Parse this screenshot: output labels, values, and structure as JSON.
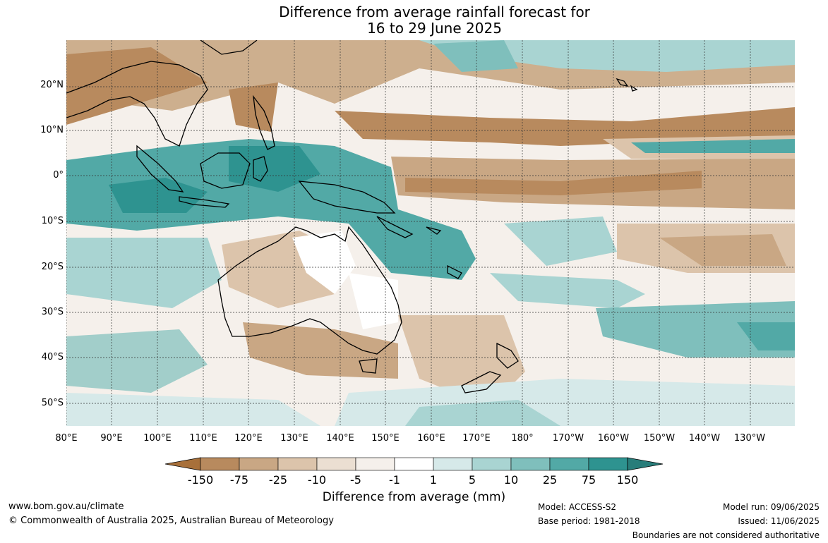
{
  "title": {
    "line1": "Difference from average rainfall forecast for",
    "line2": "16 to 29 June 2025"
  },
  "axes": {
    "lat_labels": [
      "20°N",
      "10°N",
      "0°",
      "10°S",
      "20°S",
      "30°S",
      "40°S",
      "50°S"
    ],
    "lon_labels": [
      "80°E",
      "90°E",
      "100°E",
      "110°E",
      "120°E",
      "130°E",
      "140°E",
      "150°E",
      "160°E",
      "170°E",
      "180°",
      "170°W",
      "160°W",
      "150°W",
      "140°W",
      "130°W"
    ]
  },
  "colorbar": {
    "labels": [
      "-150",
      "-75",
      "-25",
      "-10",
      "-5",
      "-1",
      "1",
      "5",
      "10",
      "25",
      "75",
      "150"
    ],
    "colors": [
      "#a8703a",
      "#b88a5e",
      "#c9a784",
      "#dcc4ab",
      "#ebdfd2",
      "#f5f0eb",
      "#ffffff",
      "#d6e9e9",
      "#a9d4d2",
      "#7fbfbc",
      "#52a9a6",
      "#2e9390",
      "#287d7a"
    ],
    "title": "Difference from average (mm)"
  },
  "footer": {
    "url": "www.bom.gov.au/climate",
    "copyright": "© Commonwealth of Australia 2025, Australian Bureau of Meteorology",
    "model": "Model: ACCESS-S2",
    "base_period": "Base period: 1981-2018",
    "model_run": "Model run: 09/06/2025",
    "issued": "Issued: 11/06/2025",
    "disclaimer": "Boundaries are not considered authoritative"
  }
}
